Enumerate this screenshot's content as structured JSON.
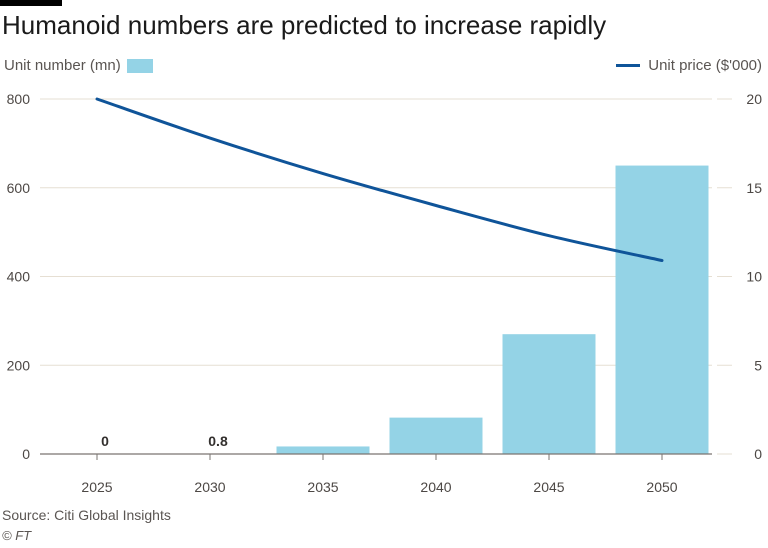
{
  "title": "Humanoid numbers are predicted to increase rapidly",
  "legend": {
    "left_label": "Unit number (mn)",
    "right_label": "Unit price ($'000)"
  },
  "source": "Source: Citi Global Insights",
  "credit": "© FT",
  "colors": {
    "bar": "#94d3e6",
    "line": "#0f5499",
    "grid": "#e6dfd3",
    "axis": "#4d4845"
  },
  "chart_data": {
    "type": "bar",
    "categories": [
      "2025",
      "2030",
      "2035",
      "2040",
      "2045",
      "2050"
    ],
    "series": [
      {
        "name": "Unit number (mn)",
        "type": "bar",
        "axis": "left",
        "values": [
          0,
          0.8,
          17,
          82,
          270,
          650
        ]
      },
      {
        "name": "Unit price ($'000)",
        "type": "line",
        "axis": "right",
        "values": [
          20,
          17.8,
          15.8,
          14,
          12.3,
          10.9
        ]
      }
    ],
    "bar_labels": [
      "0",
      "0.8",
      "",
      "",
      "",
      ""
    ],
    "y_left": {
      "label": "Unit number (mn)",
      "ticks": [
        0,
        200,
        400,
        600,
        800
      ],
      "lim": [
        0,
        800
      ]
    },
    "y_right": {
      "label": "Unit price ($'000)",
      "ticks": [
        0,
        5,
        10,
        15,
        20
      ],
      "lim": [
        0,
        20
      ]
    },
    "grid": true
  }
}
